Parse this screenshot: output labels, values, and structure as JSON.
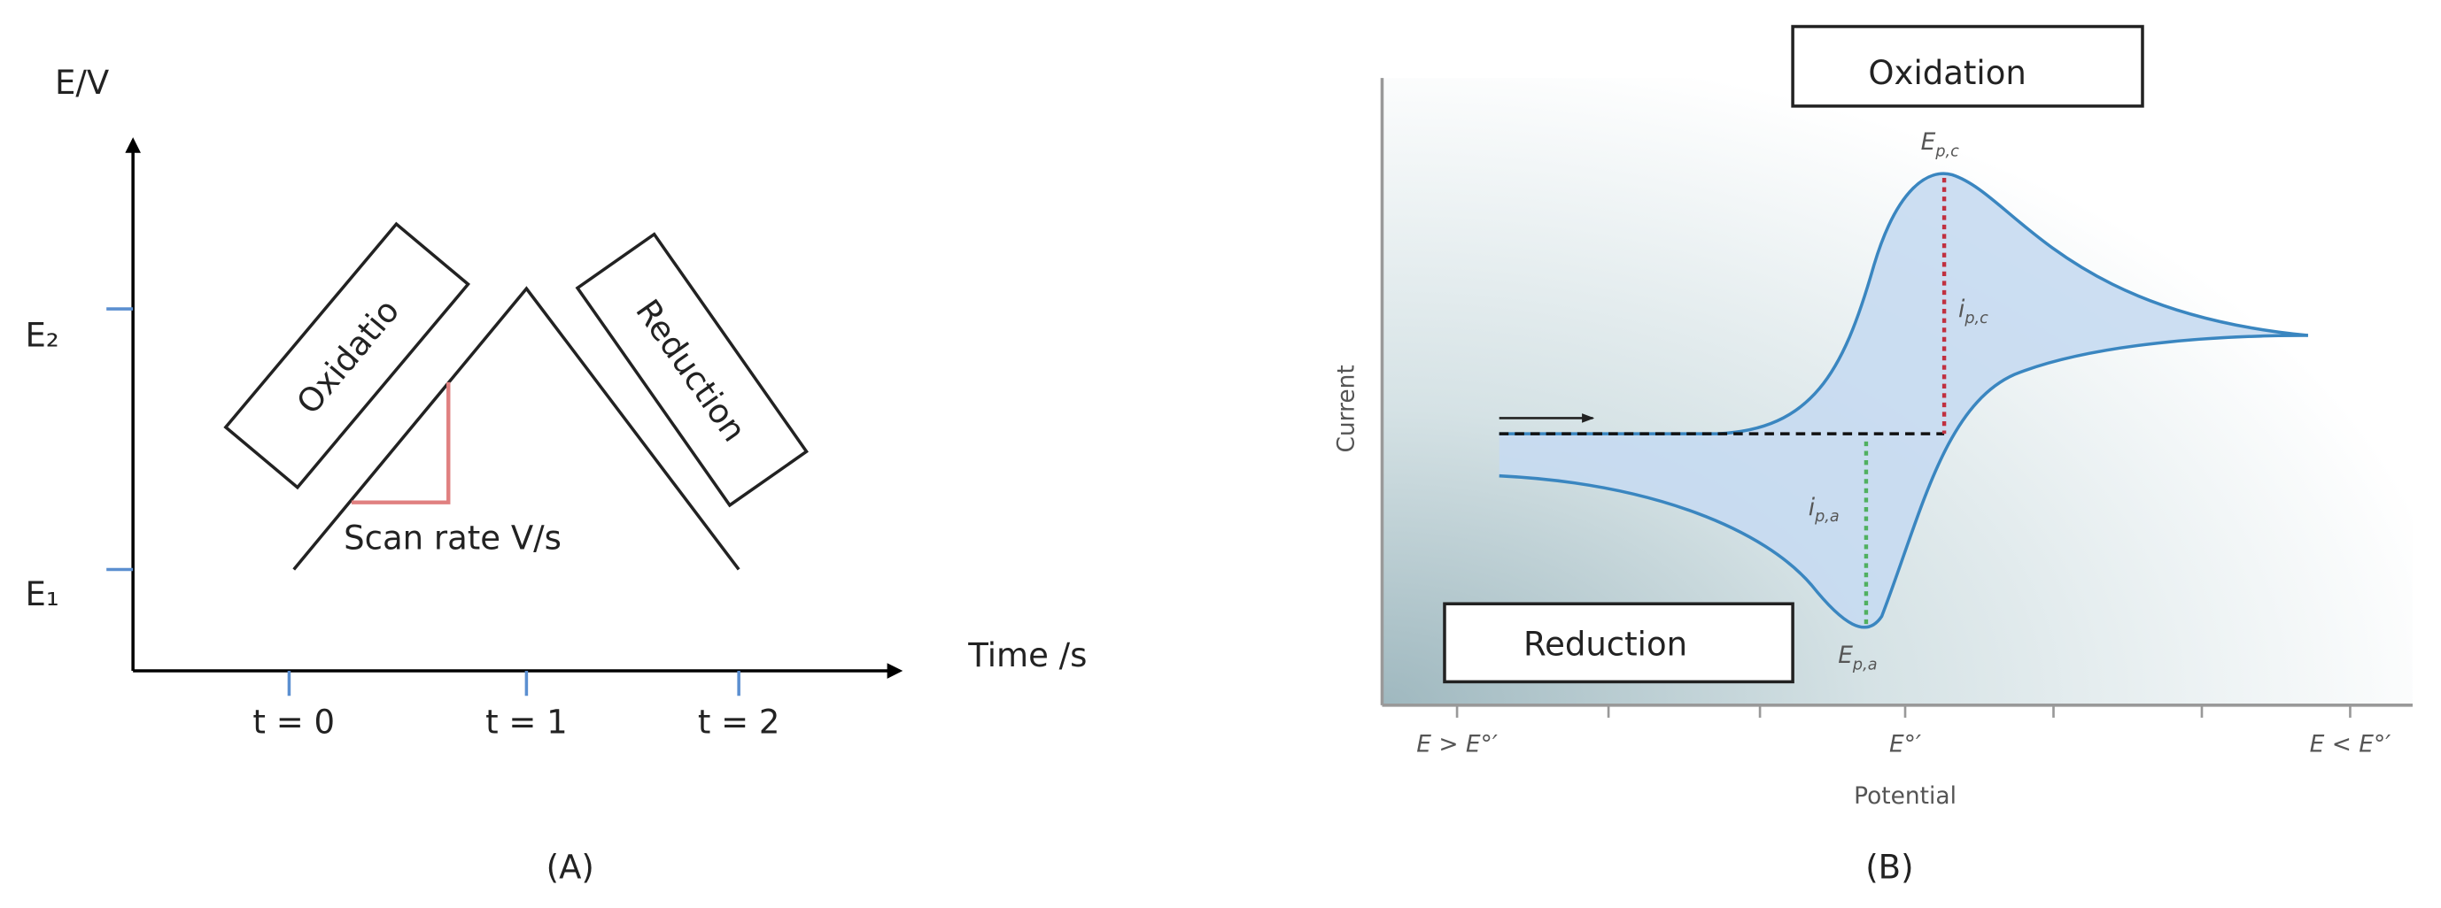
{
  "panel_a": {
    "y_axis_label": "E/V",
    "x_axis_label": "Time /s",
    "y_ticks": [
      "E₂",
      "E₁"
    ],
    "x_ticks": [
      "t = 0",
      "t = 1",
      "t = 2"
    ],
    "oxidation_box": "Oxidatio",
    "reduction_box": "Reduction",
    "slope_label": "Scan rate V/s",
    "caption": "(A)"
  },
  "panel_b": {
    "oxidation_box": "Oxidation",
    "reduction_box": "Reduction",
    "y_axis_label": "Current",
    "x_axis_label": "Potential",
    "x_ticks": [
      "E > E°′",
      "E°′",
      "E < E°′"
    ],
    "cathodic_peak_potential": {
      "main": "E",
      "sub": "p,c"
    },
    "cathodic_peak_current": {
      "main": "i",
      "sub": "p,c"
    },
    "anodic_peak_current": {
      "main": "i",
      "sub": "p,a"
    },
    "anodic_peak_potential": {
      "main": "E",
      "sub": "p,a"
    },
    "caption": "(B)"
  }
}
